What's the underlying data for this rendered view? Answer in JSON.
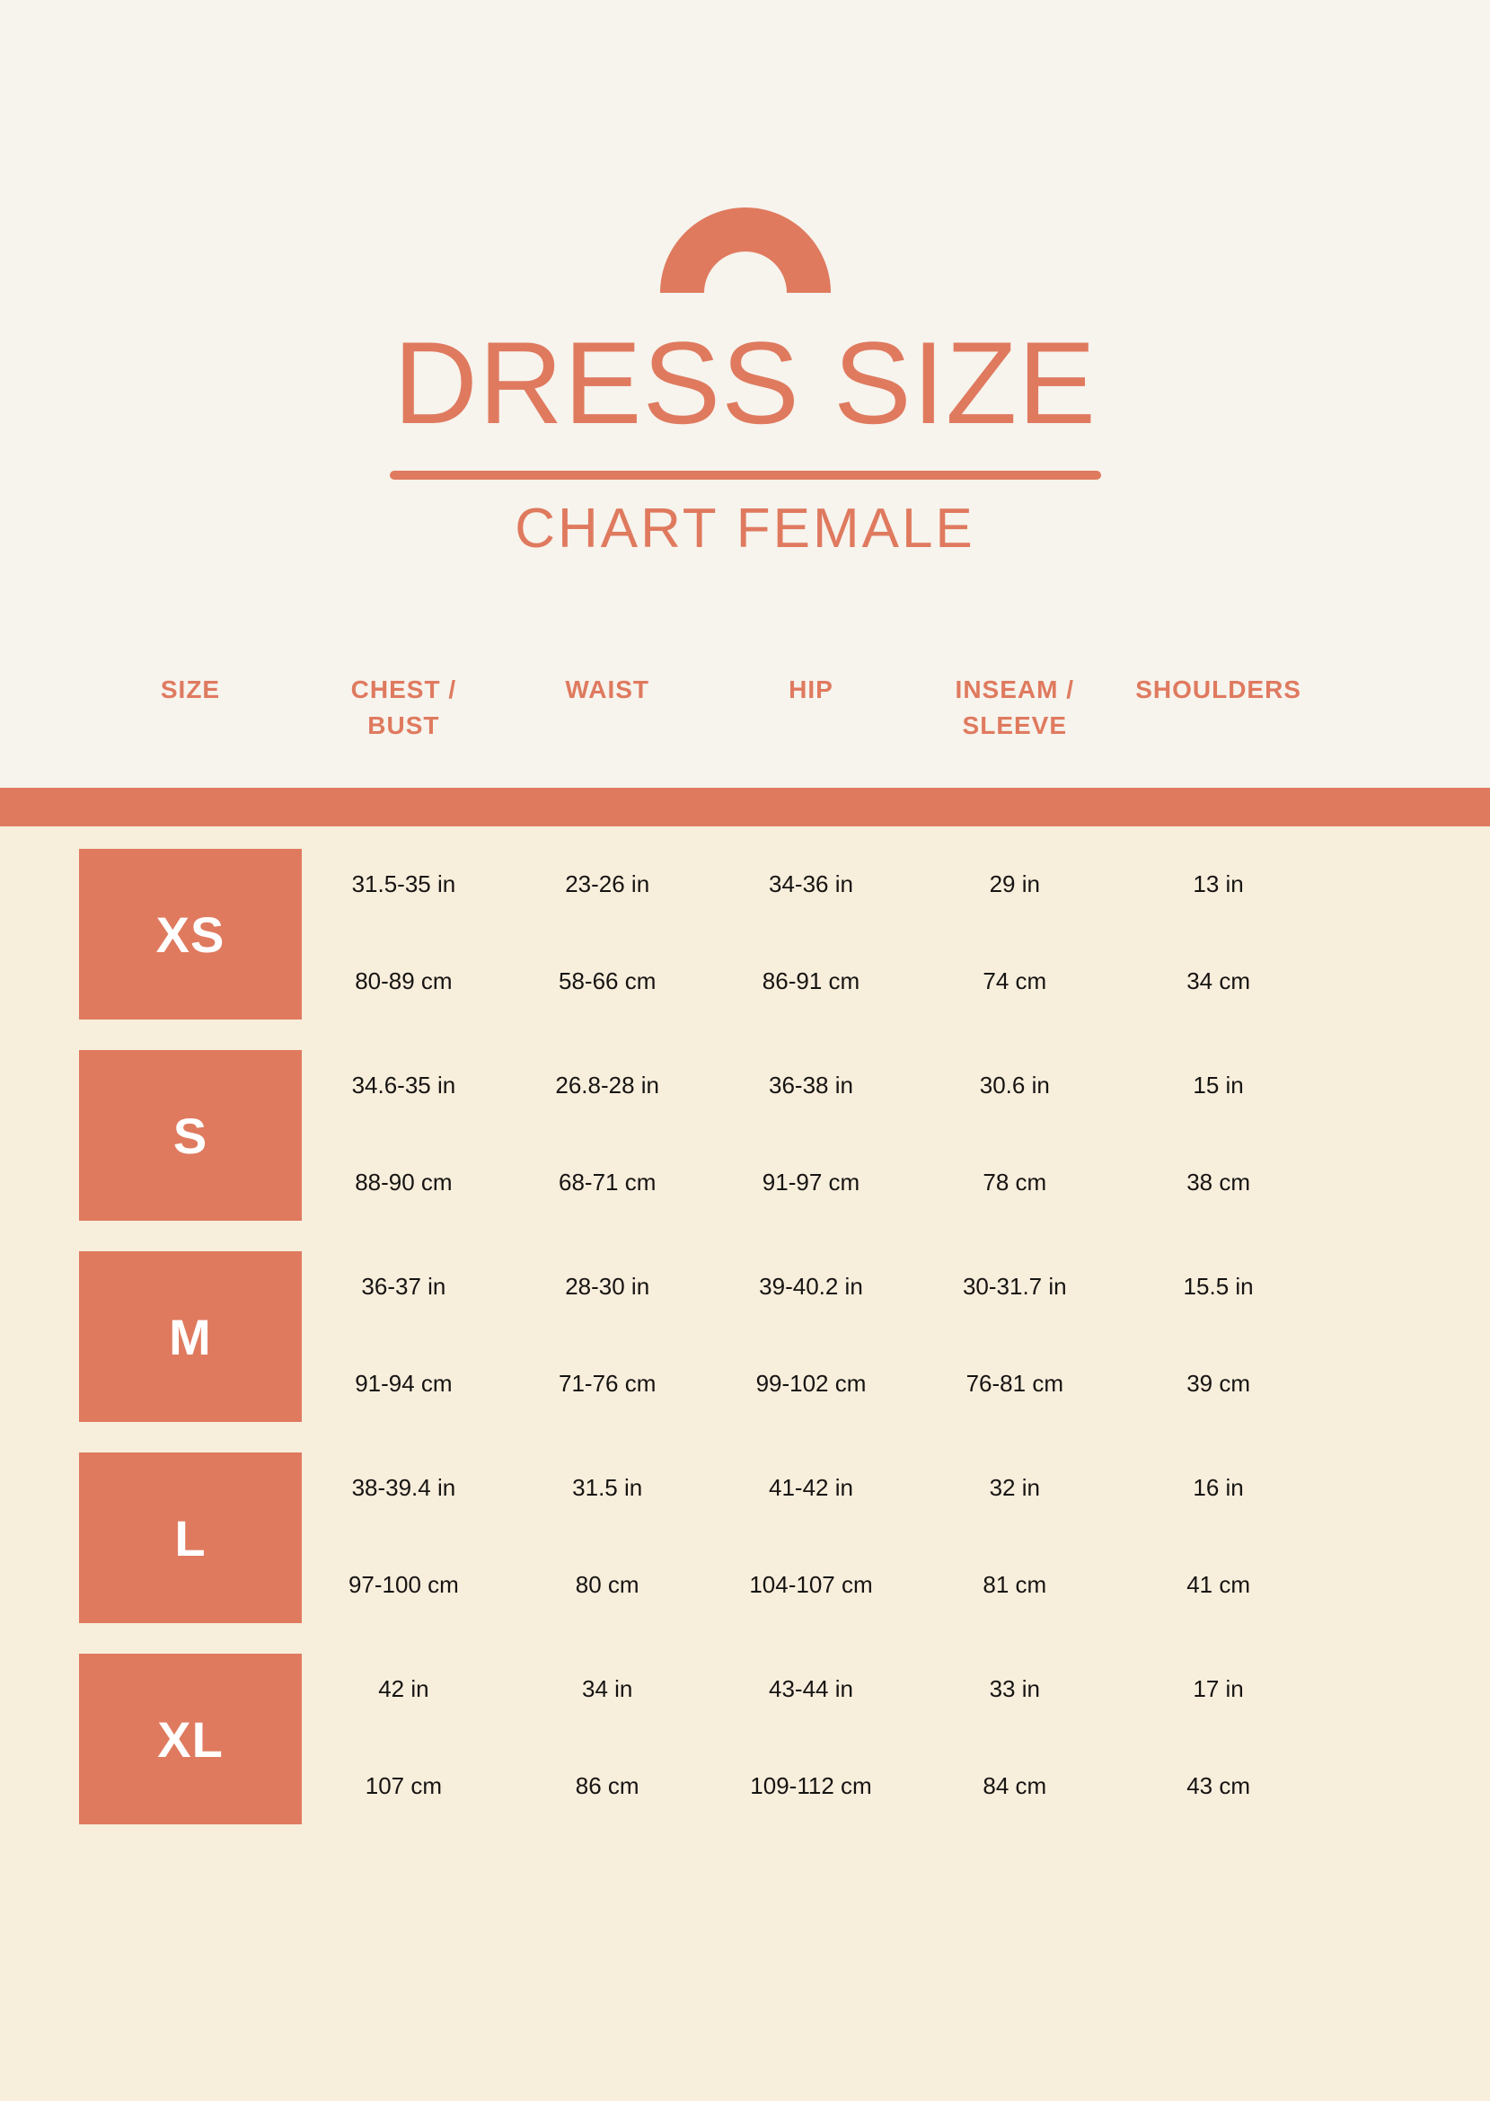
{
  "page": {
    "title": "DRESS SIZE",
    "subtitle": "CHART FEMALE"
  },
  "colors": {
    "accent": "#DF7A5F",
    "top_background": "#F7F3ED",
    "body_background": "#F8EEDC",
    "value_text": "#161412",
    "size_letter_text": "#FFFFFF"
  },
  "logo": {
    "icon": "arch-icon"
  },
  "table": {
    "header": [
      {
        "l1": "SIZE",
        "l2": ""
      },
      {
        "l1": "CHEST /",
        "l2": "BUST"
      },
      {
        "l1": "WAIST",
        "l2": ""
      },
      {
        "l1": "HIP",
        "l2": ""
      },
      {
        "l1": "INSEAM /",
        "l2": "SLEEVE"
      },
      {
        "l1": "SHOULDERS",
        "l2": ""
      }
    ],
    "rows": [
      {
        "size": "XS",
        "cells": [
          {
            "in": "31.5-35 in",
            "cm": "80-89 cm"
          },
          {
            "in": "23-26 in",
            "cm": "58-66 cm"
          },
          {
            "in": "34-36 in",
            "cm": "86-91 cm"
          },
          {
            "in": "29 in",
            "cm": "74 cm"
          },
          {
            "in": "13 in",
            "cm": "34 cm"
          }
        ]
      },
      {
        "size": "S",
        "cells": [
          {
            "in": "34.6-35 in",
            "cm": "88-90 cm"
          },
          {
            "in": "26.8-28 in",
            "cm": "68-71 cm"
          },
          {
            "in": "36-38 in",
            "cm": "91-97 cm"
          },
          {
            "in": "30.6 in",
            "cm": "78 cm"
          },
          {
            "in": "15 in",
            "cm": "38 cm"
          }
        ]
      },
      {
        "size": "M",
        "cells": [
          {
            "in": "36-37 in",
            "cm": "91-94 cm"
          },
          {
            "in": "28-30 in",
            "cm": "71-76 cm"
          },
          {
            "in": "39-40.2 in",
            "cm": "99-102 cm"
          },
          {
            "in": "30-31.7 in",
            "cm": "76-81 cm"
          },
          {
            "in": "15.5 in",
            "cm": "39 cm"
          }
        ]
      },
      {
        "size": "L",
        "cells": [
          {
            "in": "38-39.4 in",
            "cm": "97-100 cm"
          },
          {
            "in": "31.5 in",
            "cm": "80 cm"
          },
          {
            "in": "41-42 in",
            "cm": "104-107 cm"
          },
          {
            "in": "32 in",
            "cm": "81 cm"
          },
          {
            "in": "16 in",
            "cm": "41 cm"
          }
        ]
      },
      {
        "size": "XL",
        "cells": [
          {
            "in": "42 in",
            "cm": "107 cm"
          },
          {
            "in": "34 in",
            "cm": "86 cm"
          },
          {
            "in": "43-44 in",
            "cm": "109-112 cm"
          },
          {
            "in": "33 in",
            "cm": "84 cm"
          },
          {
            "in": "17 in",
            "cm": "43 cm"
          }
        ]
      }
    ]
  }
}
